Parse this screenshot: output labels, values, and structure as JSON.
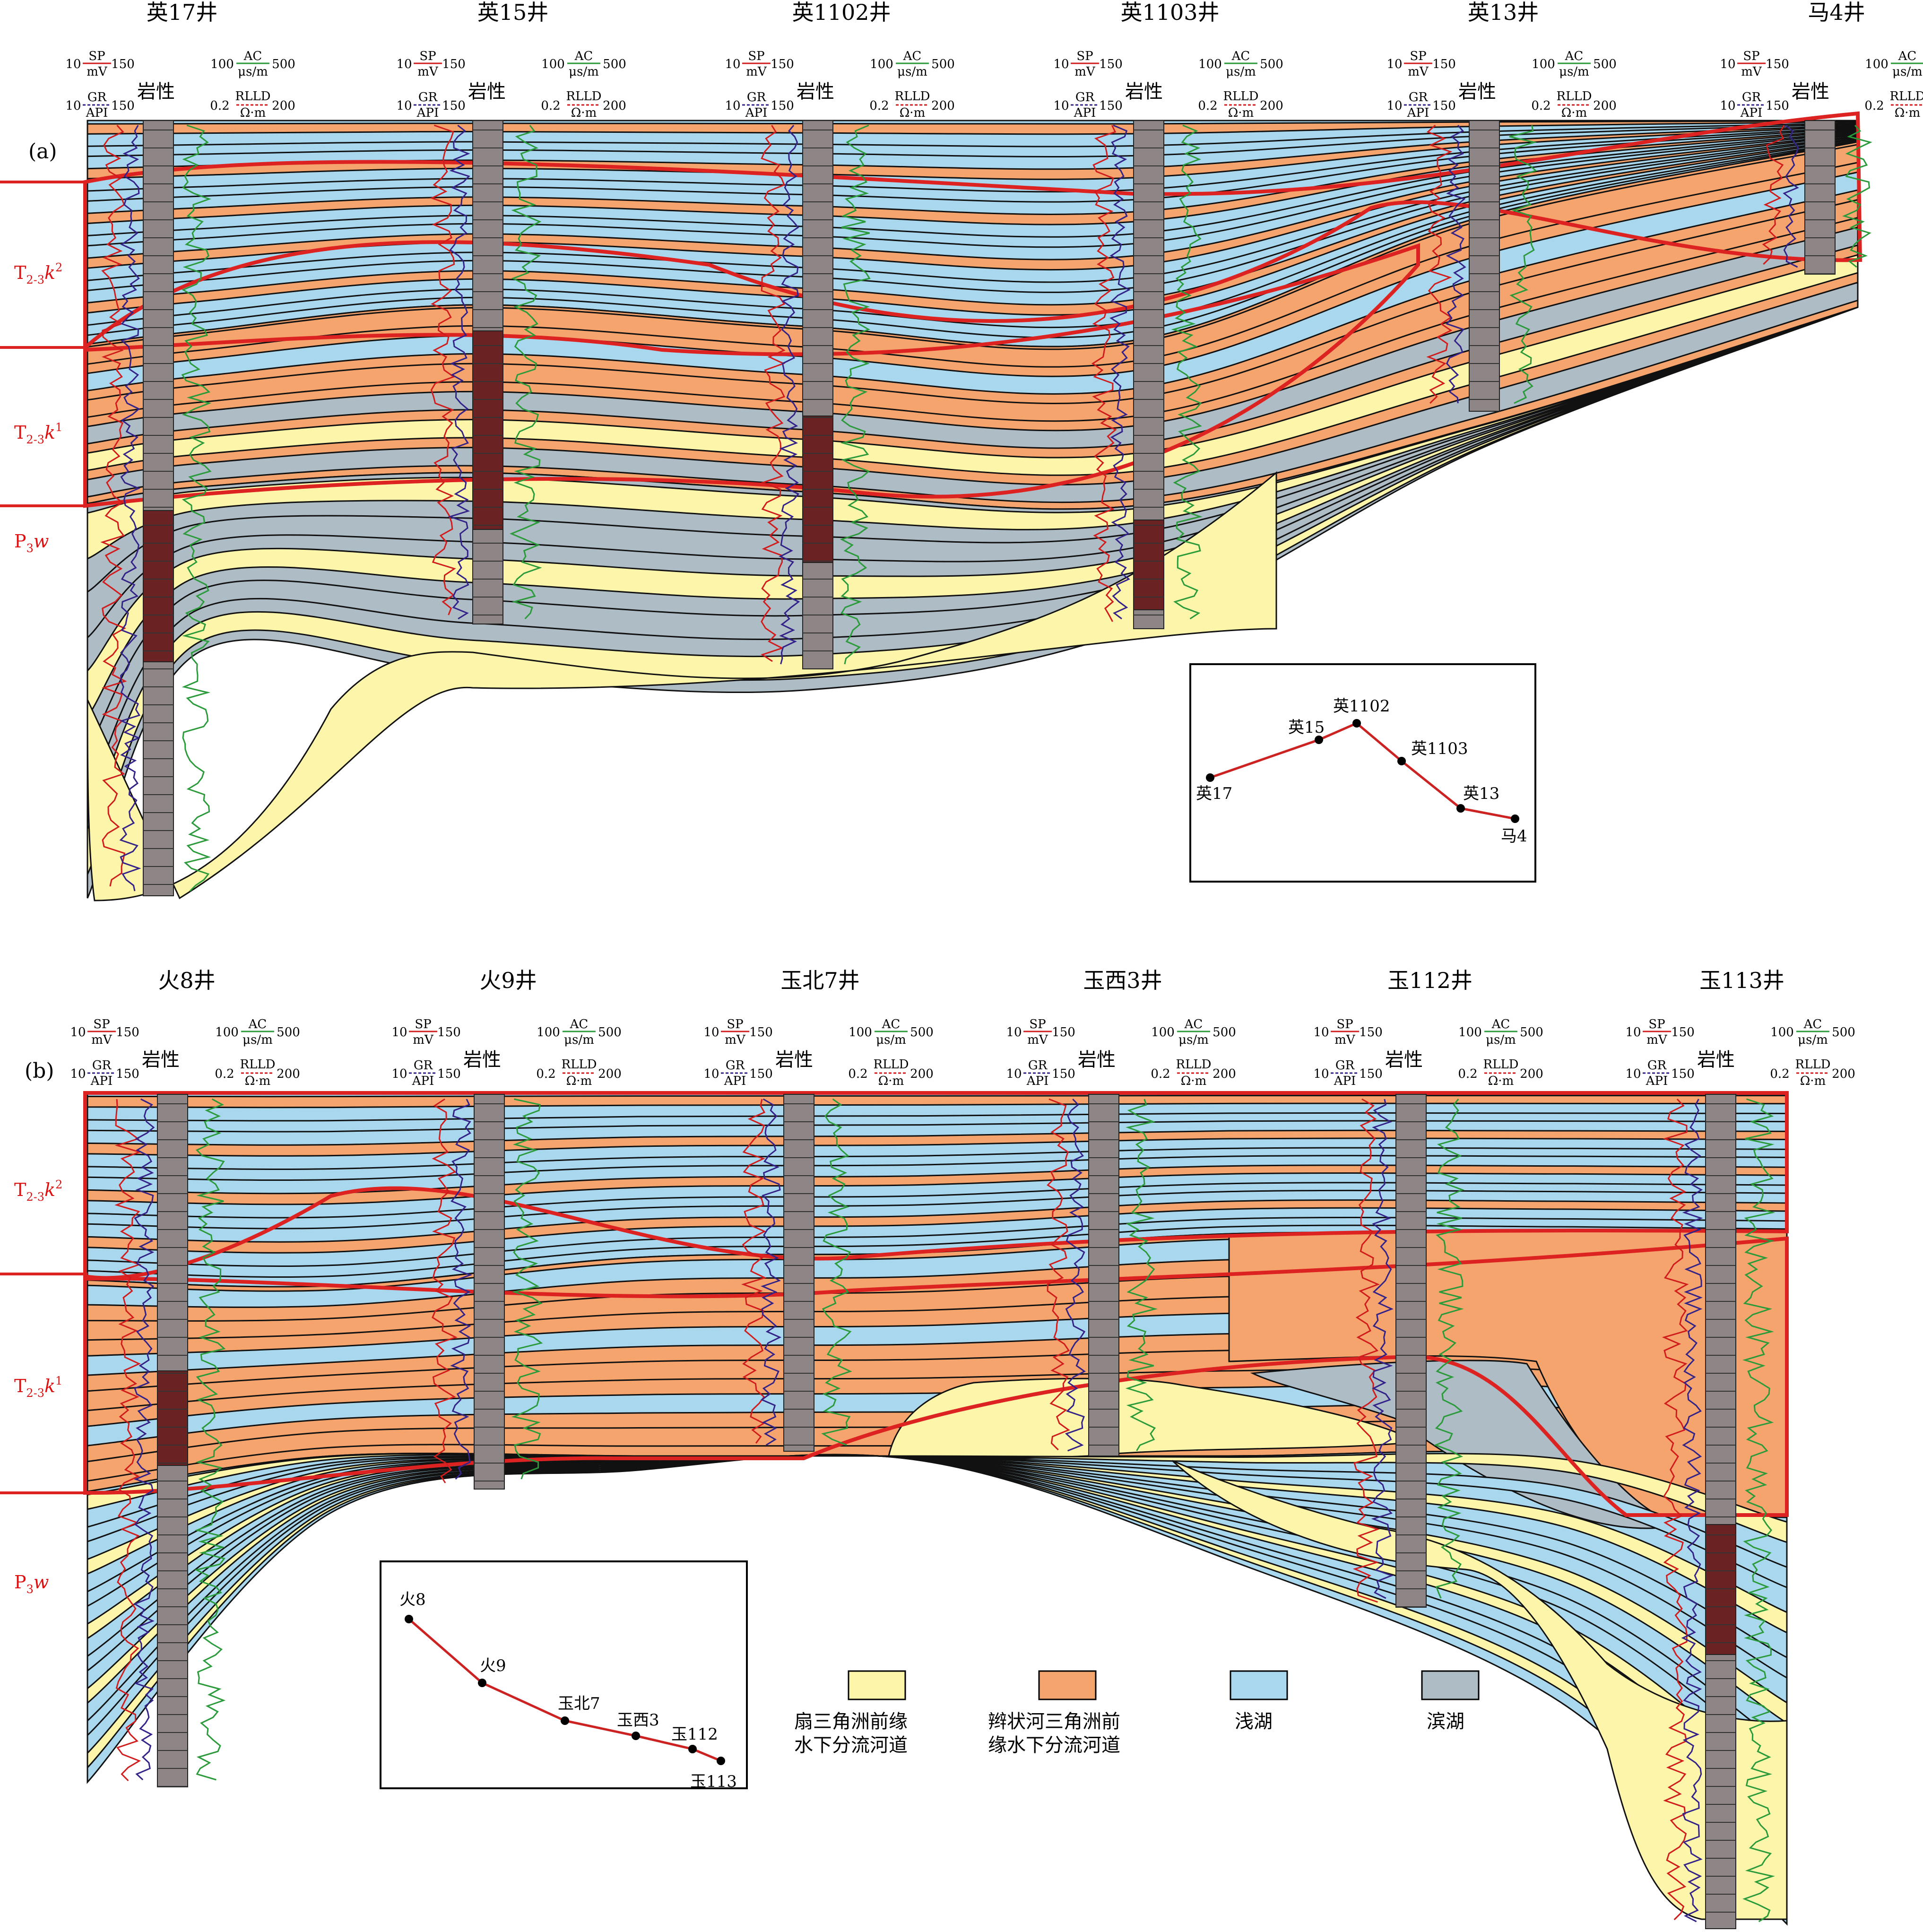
{
  "colors": {
    "fan_delta": "#fdf5a9",
    "braided_delta": "#f4a46c",
    "shallow_lake": "#a9d8ee",
    "shore_lake": "#aebcc5",
    "boundary_red": "#dd2222",
    "well_gray": "#8e8686",
    "well_dark": "#6b2222",
    "sp_curve": "#d01c1c",
    "gr_curve": "#332288",
    "ac_curve": "#2a9a3a"
  },
  "panel_a": {
    "label": "(a)",
    "wells": [
      "英17井",
      "英15井",
      "英1102井",
      "英1103井",
      "英13井",
      "马4井"
    ],
    "formations": [
      "T2-3k2",
      "T2-3k1",
      "P3w"
    ],
    "inset_map": {
      "points": [
        {
          "name": "英17"
        },
        {
          "name": "英15"
        },
        {
          "name": "英1102"
        },
        {
          "name": "英1103"
        },
        {
          "name": "英13"
        },
        {
          "name": "马4"
        }
      ]
    }
  },
  "panel_b": {
    "label": "(b)",
    "wells": [
      "火8井",
      "火9井",
      "玉北7井",
      "玉西3井",
      "玉112井",
      "玉113井"
    ],
    "formations": [
      "T2-3k2",
      "T2-3k1",
      "P3w"
    ],
    "inset_map": {
      "points": [
        {
          "name": "火8"
        },
        {
          "name": "火9"
        },
        {
          "name": "玉北7"
        },
        {
          "name": "玉西3"
        },
        {
          "name": "玉112"
        },
        {
          "name": "玉113"
        }
      ]
    }
  },
  "log_header": {
    "sp": "SP",
    "sp_unit": "mV",
    "sp_min": "10",
    "sp_max": "150",
    "gr": "GR",
    "gr_unit": "API",
    "gr_min": "10",
    "gr_max": "150",
    "lithology": "岩性",
    "ac": "AC",
    "ac_unit": "μs/m",
    "ac_min": "100",
    "ac_max": "500",
    "rlld": "RLLD",
    "rlld_unit": "Ω·m",
    "rlld_min": "0.2",
    "rlld_max": "200"
  },
  "legend": [
    {
      "key": "fan_delta",
      "line1": "扇三角洲前缘",
      "line2": "水下分流河道",
      "color": "#fdf5a9"
    },
    {
      "key": "braided_delta",
      "line1": "辫状河三角洲前",
      "line2": "缘水下分流河道",
      "color": "#f4a46c"
    },
    {
      "key": "shallow_lake",
      "line1": "浅湖",
      "line2": "",
      "color": "#a9d8ee"
    },
    {
      "key": "shore_lake",
      "line1": "滨湖",
      "line2": "",
      "color": "#aebcc5"
    }
  ]
}
